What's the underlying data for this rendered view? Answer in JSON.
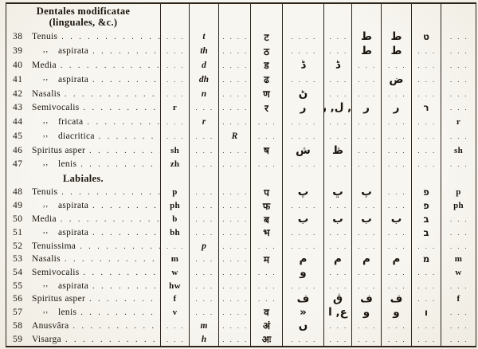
{
  "page": {
    "paper_color": "#f8f6f1",
    "ink_color": "#1a140d",
    "dot_leader": ". . . . . . . . . . . . . . . . . . . . . . . ."
  },
  "table": {
    "sections": [
      {
        "header_lines": [
          "Dentales modificatae",
          "(linguales, &c.)"
        ],
        "rows": [
          {
            "num": "38",
            "ditto": "",
            "name": "Tenuis",
            "cells": [
              ". . .",
              "t",
              ". . . .",
              "ट",
              ". . . .",
              ". . .",
              "ط",
              "ط",
              "ט",
              ". . ."
            ]
          },
          {
            "num": "39",
            "ditto": ",,",
            "name": "aspirata",
            "cells": [
              ". . .",
              "th",
              ". . . .",
              "ठ",
              ". . . .",
              ". . .",
              "ط",
              "ط",
              ". . .",
              ". . ."
            ]
          },
          {
            "num": "40",
            "ditto": "",
            "name": "Media",
            "cells": [
              ". . .",
              "d",
              ". . . .",
              "ड",
              "ڈ",
              "ڈ",
              ". . .",
              ". . .",
              ". . .",
              ". . ."
            ]
          },
          {
            "num": "41",
            "ditto": ",,",
            "name": "aspirata",
            "cells": [
              ". . .",
              "dh",
              ". . . .",
              "ढ",
              ". . . .",
              ". . .",
              ". . .",
              "ض",
              ". . .",
              ". . ."
            ]
          },
          {
            "num": "42",
            "ditto": "",
            "name": "Nasalis",
            "cells": [
              ". . .",
              "n",
              ". . . .",
              "ण",
              "ڻ",
              ". . .",
              ". . .",
              ". . .",
              ". . .",
              ". . ."
            ]
          },
          {
            "num": "43",
            "ditto": "",
            "name": "Semivocalis",
            "cells": [
              "r",
              ". . .",
              ". . . .",
              "र",
              "ر",
              "ا, ل, ر",
              "ر",
              "ر",
              "ר",
              ". . ."
            ]
          },
          {
            "num": "44",
            "ditto": ",,",
            "name": "fricata",
            "cells": [
              ". . .",
              "r",
              ". . . .",
              ". . .",
              ". . . .",
              ". . .",
              ". . .",
              ". . .",
              ". . .",
              "r"
            ]
          },
          {
            "num": "45",
            "ditto": ",,",
            "name": "diacritica",
            "cells": [
              ". . .",
              ". . .",
              "R",
              ". . .",
              ". . . .",
              ". . .",
              ". . .",
              ". . .",
              ". . .",
              ". . ."
            ]
          },
          {
            "num": "46",
            "ditto": "",
            "name": "Spiritus asper",
            "cells": [
              "sh",
              ". . .",
              ". . . .",
              "ष",
              "ش",
              "ڟ",
              ". . .",
              ". . .",
              ". . .",
              "sh"
            ]
          },
          {
            "num": "47",
            "ditto": ",,",
            "name": "lenis",
            "cells": [
              "zh",
              ". . .",
              ". . . .",
              ". . .",
              ". . . .",
              ". . .",
              ". . .",
              ". . .",
              ". . .",
              ". . ."
            ]
          }
        ]
      },
      {
        "header_lines": [
          "Labiales."
        ],
        "rows": [
          {
            "num": "48",
            "ditto": "",
            "name": "Tenuis",
            "cells": [
              "p",
              ". . .",
              ". . . .",
              "प",
              "پ",
              "ڀ",
              "پ",
              ". . .",
              "פ",
              "p"
            ]
          },
          {
            "num": "49",
            "ditto": ",,",
            "name": "aspirata",
            "cells": [
              "ph",
              ". . .",
              ". . . .",
              "फ",
              ". . . .",
              ". . .",
              ". . .",
              ". . .",
              "פ",
              "ph"
            ]
          },
          {
            "num": "50",
            "ditto": "",
            "name": "Media",
            "cells": [
              "b",
              ". . .",
              ". . . .",
              "ब",
              "ب",
              "ب",
              "ب",
              "ب",
              "ב",
              ". . ."
            ]
          },
          {
            "num": "51",
            "ditto": ",,",
            "name": "aspirata",
            "cells": [
              "bh",
              ". . .",
              ". . . .",
              "भ",
              ". . . .",
              ". . .",
              ". . .",
              ". . .",
              "ב",
              ". . ."
            ]
          },
          {
            "num": "52",
            "ditto": "",
            "name": "Tenuissima",
            "cells": [
              ". . .",
              "p",
              ". . . .",
              ". . .",
              ". . . .",
              ". . .",
              ". . .",
              ". . .",
              ". . .",
              ". . ."
            ]
          },
          {
            "num": "53",
            "ditto": "",
            "name": "Nasalis",
            "cells": [
              "m",
              ". . .",
              ". . . .",
              "म",
              "م",
              "م",
              "م",
              "م",
              "מ",
              "m"
            ]
          },
          {
            "num": "54",
            "ditto": "",
            "name": "Semivocalis",
            "cells": [
              "w",
              ". . .",
              ". . . .",
              ". . .",
              "و",
              ". . .",
              ". . .",
              ". . .",
              ". . .",
              "w"
            ]
          },
          {
            "num": "55",
            "ditto": ",,",
            "name": "aspirata",
            "cells": [
              "hw",
              ". . .",
              ". . . .",
              ". . .",
              ". . . .",
              ". . .",
              ". . .",
              ". . .",
              ". . .",
              ". . ."
            ]
          },
          {
            "num": "56",
            "ditto": "",
            "name": "Spiritus asper",
            "cells": [
              "f",
              ". . .",
              ". . . .",
              ". . .",
              "ف",
              "ڨ",
              "ف",
              "ف",
              ". . .",
              "f"
            ]
          },
          {
            "num": "57",
            "ditto": ",,",
            "name": "lenis",
            "cells": [
              "v",
              ". . .",
              ". . . .",
              "व",
              "»",
              "ع, ا",
              "و",
              "و",
              "ו",
              ". . ."
            ]
          },
          {
            "num": "58",
            "ditto": "",
            "name": "Anusvâra",
            "cells": [
              ". . .",
              "m",
              ". . . .",
              "अं",
              "ں",
              ". . .",
              ". . .",
              ". . .",
              ". . .",
              ". . ."
            ]
          },
          {
            "num": "59",
            "ditto": "",
            "name": "Visarga",
            "cells": [
              ". . .",
              "h",
              ". . . .",
              "अः",
              ". . . .",
              ". . .",
              ". . .",
              ". . .",
              ". . .",
              ". . ."
            ]
          }
        ]
      }
    ],
    "column_scripts": [
      "lat",
      "lat-it",
      "lat-it",
      "deva",
      "arab",
      "arab",
      "arab",
      "arab",
      "heb",
      "lat"
    ]
  }
}
